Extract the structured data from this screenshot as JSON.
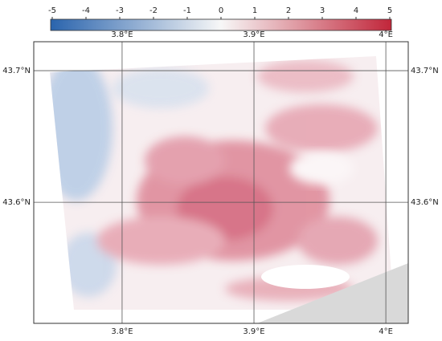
{
  "chart_data": {
    "type": "map",
    "colorbar": {
      "lim": [
        -5,
        5
      ],
      "ticks": [
        -5,
        -4,
        -3,
        -2,
        -1,
        0,
        1,
        2,
        3,
        4,
        5
      ],
      "colormap": [
        "#2a64ad",
        "#f7f7f7",
        "#c1263a"
      ]
    },
    "xlim": [
      3.733,
      4.017
    ],
    "xticks": [
      {
        "value": 3.8,
        "label": "3.8°E"
      },
      {
        "value": 3.9,
        "label": "3.9°E"
      },
      {
        "value": 4.0,
        "label": "4°E"
      }
    ],
    "ylim": [
      43.508,
      43.722
    ],
    "yticks": [
      {
        "value": 43.7,
        "label": "43.7°N"
      },
      {
        "value": 43.6,
        "label": "43.6°N"
      }
    ],
    "grid": true
  }
}
